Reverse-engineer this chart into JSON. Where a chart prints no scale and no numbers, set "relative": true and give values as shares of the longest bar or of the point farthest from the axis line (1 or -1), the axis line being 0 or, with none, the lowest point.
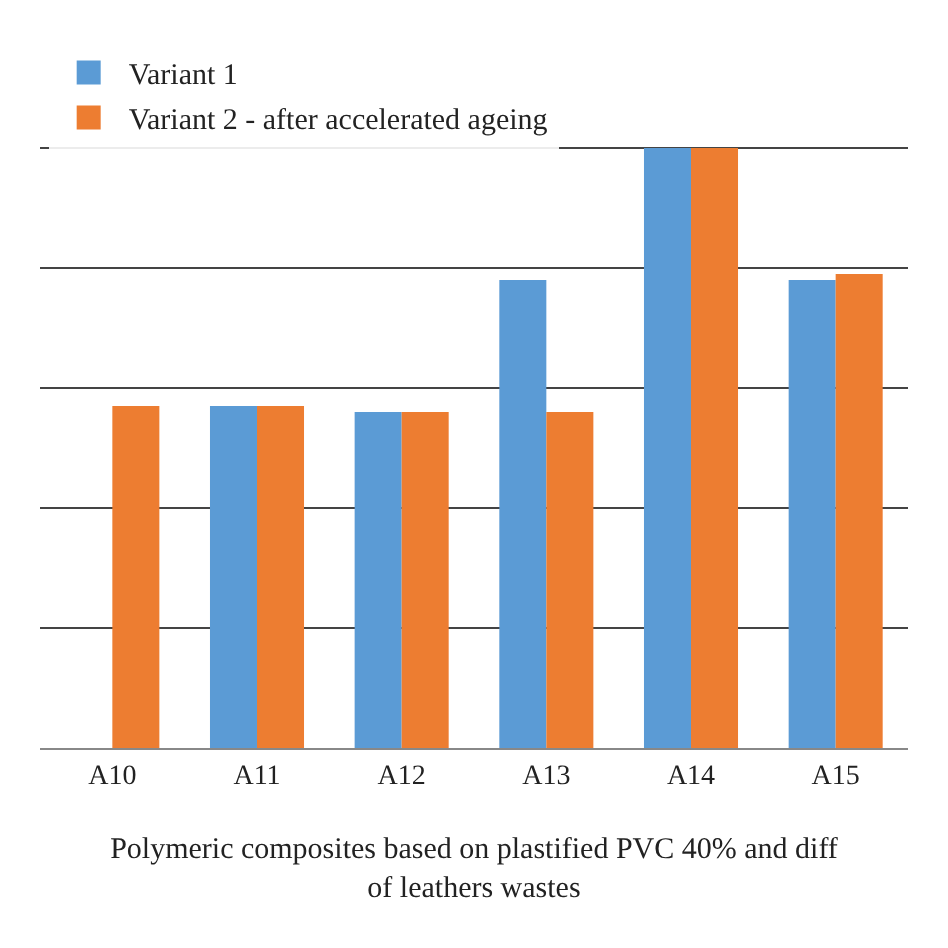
{
  "chart_data": {
    "type": "bar",
    "relative": true,
    "xlabel": "Polymeric composites based on plastified PVC 40% and diff\nof leathers wastes",
    "categories": [
      "A10",
      "A11",
      "A12",
      "A13",
      "A14",
      "A15"
    ],
    "series": [
      {
        "name": "Variant 1",
        "color": "#5b9bd5",
        "values": [
          null,
          0.57,
          0.56,
          0.78,
          1,
          0.78
        ]
      },
      {
        "name": "Variant 2 - after accelerated ageing",
        "color": "#ed7d31",
        "values": [
          0.57,
          0.57,
          0.56,
          0.56,
          1,
          0.79
        ]
      }
    ],
    "grid": "y",
    "legend": "top left"
  }
}
